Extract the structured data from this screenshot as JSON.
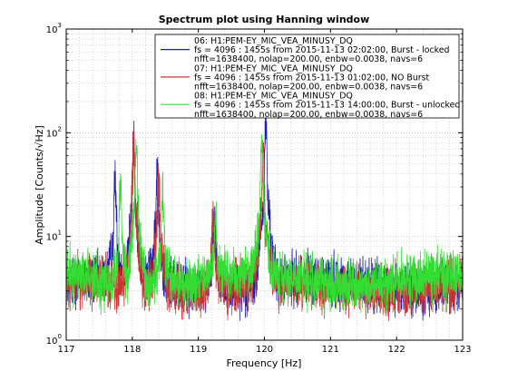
{
  "chart_data": {
    "type": "line",
    "title": "Spectrum plot using Hanning window",
    "xlabel": "Frequency [Hz]",
    "ylabel": "Amplitude [Counts/√Hz]",
    "xlim": [
      117,
      123
    ],
    "ylim": [
      1,
      1000
    ],
    "yscale": "log",
    "grid": true,
    "legend_position": "top-right",
    "x_ticks": [
      "117",
      "118",
      "119",
      "120",
      "121",
      "122",
      "123"
    ],
    "y_ticks": [
      {
        "base": "10",
        "exp": "0"
      },
      {
        "base": "10",
        "exp": "1"
      },
      {
        "base": "10",
        "exp": "2"
      },
      {
        "base": "10",
        "exp": "3"
      }
    ],
    "series": [
      {
        "name": "06: H1:PEM-EY_MIC_VEA_MINUSY_DQ",
        "detail1": "fs = 4096 : 1455s from 2015-11-13 02:02:00,    Burst - locked",
        "detail2": "nfft=1638400, nolap=200.00, enbw=0.0038, navs=6",
        "color": "#1f1fb4",
        "baseline": 3.5,
        "peaks": [
          [
            117.74,
            26
          ],
          [
            118.02,
            68
          ],
          [
            118.38,
            35
          ],
          [
            119.24,
            14
          ],
          [
            120.02,
            100
          ]
        ]
      },
      {
        "name": "07: H1:PEM-EY_MIC_VEA_MINUSY_DQ",
        "detail1": "fs = 4096 : 1455s from 2015-11-13 01:02:00,    NO Burst",
        "detail2": "nfft=1638400, nolap=200.00, enbw=0.0038, navs=6",
        "color": "#cc3333",
        "baseline": 3.3,
        "peaks": [
          [
            118.02,
            60
          ],
          [
            118.4,
            32
          ],
          [
            119.22,
            11
          ],
          [
            119.98,
            55
          ]
        ]
      },
      {
        "name": "08: H1:PEM-EY_MIC_VEA_MINUSY_DQ",
        "detail1": "fs = 4096 : 1455s from 2015-11-13 14:00:00,    Burst - unlocked",
        "detail2": "nfft=1638400, nolap=200.00, enbw=0.0038, navs=6",
        "color": "#33dd33",
        "baseline": 3.8,
        "peaks": [
          [
            117.82,
            22
          ],
          [
            118.06,
            63
          ],
          [
            118.46,
            22
          ],
          [
            119.26,
            11
          ],
          [
            119.96,
            72
          ]
        ]
      }
    ]
  }
}
